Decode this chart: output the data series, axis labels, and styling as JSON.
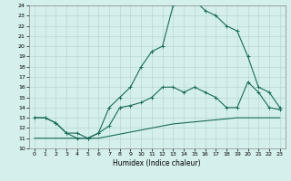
{
  "bg_color": "#d4efec",
  "grid_color": "#b8d8d4",
  "line_color": "#1a6b5a",
  "xlabel": "Humidex (Indice chaleur)",
  "xlim": [
    -0.5,
    23.5
  ],
  "ylim": [
    10,
    24
  ],
  "xticks": [
    0,
    1,
    2,
    3,
    4,
    5,
    6,
    7,
    8,
    9,
    10,
    11,
    12,
    13,
    14,
    15,
    16,
    17,
    18,
    19,
    20,
    21,
    22,
    23
  ],
  "yticks": [
    10,
    11,
    12,
    13,
    14,
    15,
    16,
    17,
    18,
    19,
    20,
    21,
    22,
    23,
    24
  ],
  "curve1_x": [
    0,
    1,
    2,
    3,
    4,
    5,
    6,
    7,
    8,
    9,
    10,
    11,
    12,
    13,
    14,
    15,
    16,
    17,
    18,
    19,
    20,
    21,
    22,
    23
  ],
  "curve1_y": [
    13.0,
    13.0,
    12.5,
    11.5,
    11.0,
    11.0,
    11.5,
    14.0,
    15.0,
    16.0,
    18.0,
    19.5,
    20.0,
    24.0,
    24.5,
    24.5,
    23.5,
    23.0,
    22.0,
    21.5,
    19.0,
    16.0,
    15.5,
    14.0
  ],
  "curve2_x": [
    0,
    1,
    2,
    3,
    4,
    5,
    6,
    7,
    8,
    9,
    10,
    11,
    12,
    13,
    14,
    15,
    16,
    17,
    18,
    19,
    20,
    21,
    22,
    23
  ],
  "curve2_y": [
    13.0,
    13.0,
    12.5,
    11.5,
    11.5,
    11.0,
    11.5,
    12.2,
    14.0,
    14.2,
    14.5,
    15.0,
    16.0,
    16.0,
    15.5,
    16.0,
    15.5,
    15.0,
    14.0,
    14.0,
    16.5,
    15.5,
    14.0,
    13.8
  ],
  "curve3_x": [
    0,
    1,
    2,
    3,
    4,
    5,
    6,
    7,
    8,
    9,
    10,
    11,
    12,
    13,
    14,
    15,
    16,
    17,
    18,
    19,
    20,
    21,
    22,
    23
  ],
  "curve3_y": [
    11.0,
    11.0,
    11.0,
    11.0,
    11.0,
    11.0,
    11.0,
    11.2,
    11.4,
    11.6,
    11.8,
    12.0,
    12.2,
    12.4,
    12.5,
    12.6,
    12.7,
    12.8,
    12.9,
    13.0,
    13.0,
    13.0,
    13.0,
    13.0
  ]
}
